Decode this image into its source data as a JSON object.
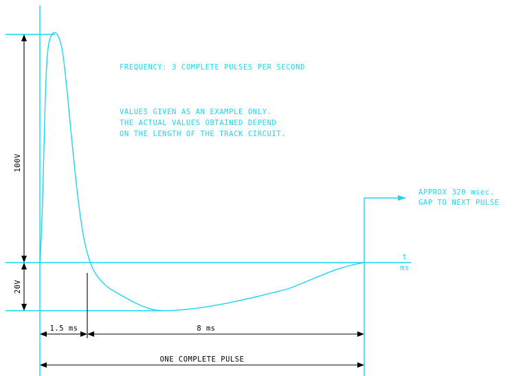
{
  "notes": {
    "frequency": "FREQUENCY: 3 COMPLETE PULSES PER SECOND",
    "example_line1": "VALUES GIVEN AS AN EXAMPLE ONLY.",
    "example_line2": "THE ACTUAL VALUES OBTAINED DEPEND",
    "example_line3": "ON THE LENGTH OF THE TRACK CIRCUIT.",
    "gap_line1": "APPROX 320 msec.",
    "gap_line2": "GAP TO NEXT PULSE"
  },
  "axis": {
    "t_label": "t",
    "unit_label": "ms"
  },
  "dimensions": {
    "positive_voltage": "100V",
    "negative_voltage": "20V",
    "rise_time": "1.5 ms",
    "decay_time": "8 ms",
    "pulse_length": "ONE COMPLETE PULSE"
  },
  "colors": {
    "waveform": "#1ad6f0",
    "dimension": "#000000"
  }
}
